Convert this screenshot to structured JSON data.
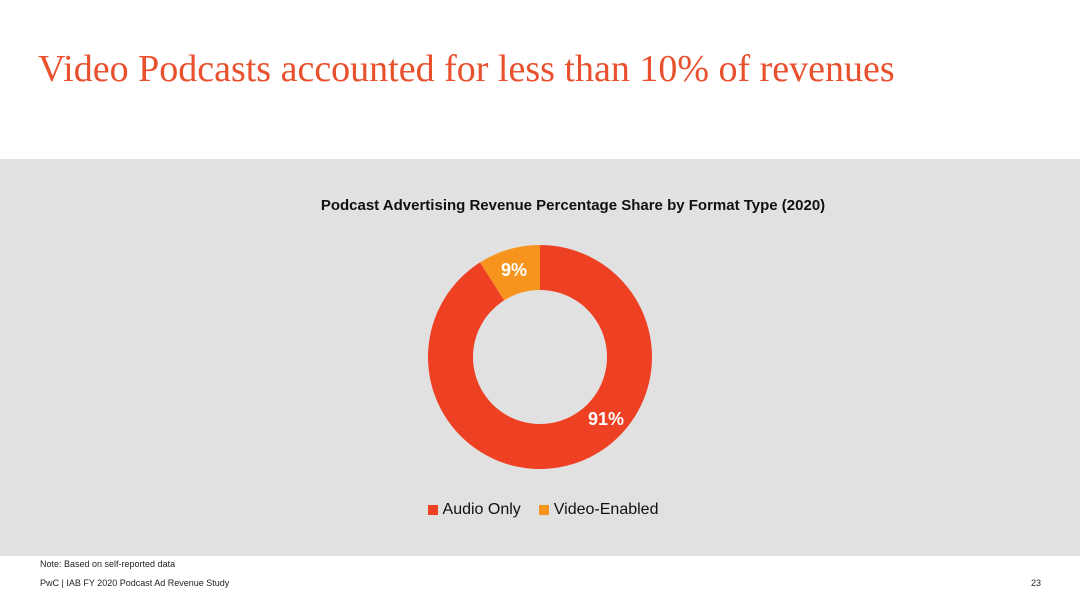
{
  "slide": {
    "title": "Video Podcasts accounted for less than 10% of revenues",
    "note": "Note: Based on self-reported data",
    "footer": "PwC  |  IAB FY 2020 Podcast Ad Revenue Study",
    "page_number": "23"
  },
  "colors": {
    "title": "#e8502e",
    "panel_background": "#e1e1e1",
    "audio_only": "#ee4023",
    "video_enabled": "#f7941d"
  },
  "chart_data": {
    "type": "pie",
    "variant": "donut",
    "title": "Podcast Advertising Revenue Percentage Share by Format Type (2020)",
    "categories": [
      "Audio Only",
      "Video-Enabled"
    ],
    "values": [
      91,
      9
    ],
    "unit": "%",
    "data_labels": [
      "91%",
      "9%"
    ],
    "start": "12 o'clock",
    "direction": "clockwise",
    "legend_position": "bottom"
  }
}
